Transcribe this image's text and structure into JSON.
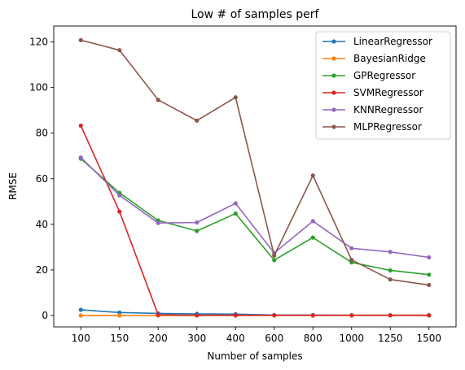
{
  "chart_data": {
    "type": "line",
    "title": "Low # of samples perf",
    "xlabel": "Number of samples",
    "ylabel": "RMSE",
    "categories": [
      "100",
      "150",
      "200",
      "300",
      "400",
      "600",
      "800",
      "1000",
      "1250",
      "1500"
    ],
    "ylim": [
      -5,
      127
    ],
    "yticks": [
      0,
      20,
      40,
      60,
      80,
      100,
      120
    ],
    "grid": false,
    "legend_position": "top-right",
    "series": [
      {
        "name": "LinearRegressor",
        "color": "#1f77b4",
        "values": [
          2.5,
          1.3,
          0.9,
          0.7,
          0.6,
          0.2,
          0.2,
          0.1,
          0.1,
          0.1
        ]
      },
      {
        "name": "BayesianRidge",
        "color": "#ff7f0e",
        "values": [
          0.0,
          0.0,
          0.0,
          0.0,
          0.0,
          0.0,
          0.0,
          0.0,
          0.0,
          0.0
        ]
      },
      {
        "name": "GPRegressor",
        "color": "#2ca02c",
        "values": [
          68.8,
          53.8,
          41.7,
          37.1,
          44.7,
          24.3,
          34.2,
          23.3,
          19.8,
          17.9
        ]
      },
      {
        "name": "SVMRegressor",
        "color": "#d62728",
        "values": [
          83.3,
          45.6,
          0.3,
          0.1,
          0.1,
          0.1,
          0.1,
          0.1,
          0.1,
          0.1
        ]
      },
      {
        "name": "KNNRegressor",
        "color": "#9467bd",
        "values": [
          69.3,
          52.7,
          40.6,
          40.8,
          49.2,
          27.4,
          41.4,
          29.5,
          27.9,
          25.5
        ]
      },
      {
        "name": "MLPRegressor",
        "color": "#8c564b",
        "values": [
          120.8,
          116.4,
          94.6,
          85.5,
          95.7,
          26.3,
          61.4,
          24.4,
          15.8,
          13.4
        ]
      }
    ]
  }
}
